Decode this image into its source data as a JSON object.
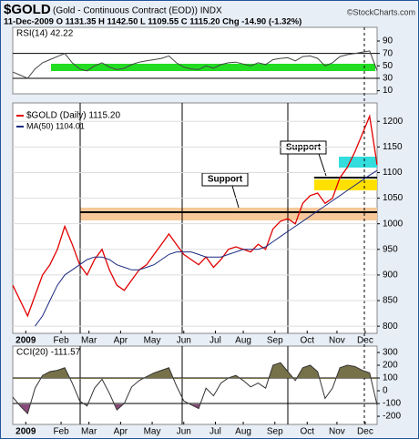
{
  "header": {
    "symbol": "$GOLD",
    "name": "(Gold - Continuous Contract (EOD)) INDX",
    "quote": "11-Dec-2009  O 1131.35  H 1142.50  L 1109.55  C 1115.20  Chg -14.90 (-1.32%)",
    "credit": "©StockCharts.com"
  },
  "chart_data": [
    {
      "type": "line",
      "label": "RSI(14) 42.22",
      "xlim": [
        0,
        49
      ],
      "ylim": [
        5,
        112
      ],
      "yticks": [
        10,
        30,
        50,
        70,
        90
      ],
      "hlines": [
        70,
        30
      ],
      "series": [
        {
          "name": "RSI(14)",
          "color": "#444444",
          "values": [
            40,
            35,
            30,
            45,
            55,
            60,
            65,
            70,
            55,
            45,
            42,
            50,
            55,
            48,
            44,
            46,
            52,
            56,
            58,
            60,
            62,
            66,
            55,
            48,
            45,
            44,
            50,
            46,
            52,
            55,
            56,
            53,
            50,
            55,
            52,
            60,
            62,
            63,
            58,
            65,
            66,
            62,
            50,
            55,
            65,
            68,
            70,
            72,
            74,
            42.22
          ]
        }
      ]
    },
    {
      "type": "line",
      "xlim": [
        0,
        49
      ],
      "ylim": [
        786,
        1236
      ],
      "yticks": [
        800,
        850,
        900,
        950,
        1000,
        1050,
        1100,
        1150,
        1200
      ],
      "grid": true,
      "annotations": [
        "Support",
        "Support"
      ],
      "xticks": [
        {
          "value": 1.75,
          "label": "2009"
        },
        {
          "value": 6.5,
          "label": "Feb"
        },
        {
          "value": 10.25,
          "label": "Mar"
        },
        {
          "value": 14.5,
          "label": "Apr"
        },
        {
          "value": 18.75,
          "label": "May"
        },
        {
          "value": 23,
          "label": "Jun"
        },
        {
          "value": 27.25,
          "label": "Jul"
        },
        {
          "value": 31,
          "label": "Aug"
        },
        {
          "value": 35.25,
          "label": "Sep"
        },
        {
          "value": 39.6,
          "label": "Oct"
        },
        {
          "value": 43.6,
          "label": "Nov"
        },
        {
          "value": 47.4,
          "label": "Dec"
        }
      ],
      "series": [
        {
          "name": "$GOLD (Daily) 1115.20",
          "color": "#e00000",
          "values": [
            880,
            850,
            820,
            860,
            900,
            920,
            950,
            995,
            960,
            920,
            900,
            930,
            950,
            910,
            880,
            870,
            890,
            910,
            920,
            940,
            960,
            980,
            960,
            940,
            930,
            920,
            935,
            915,
            930,
            950,
            955,
            950,
            945,
            960,
            950,
            990,
            1005,
            1010,
            1000,
            1040,
            1055,
            1060,
            1040,
            1050,
            1090,
            1110,
            1140,
            1175,
            1210,
            1115.2
          ]
        },
        {
          "name": "MA(50) 1104.01",
          "color": "#1a2a80",
          "values": [
            null,
            null,
            null,
            800,
            820,
            850,
            880,
            900,
            910,
            920,
            930,
            935,
            935,
            930,
            920,
            915,
            910,
            910,
            915,
            920,
            930,
            940,
            945,
            945,
            945,
            940,
            935,
            935,
            935,
            940,
            945,
            950,
            950,
            950,
            955,
            965,
            975,
            985,
            995,
            1005,
            1015,
            1025,
            1035,
            1045,
            1055,
            1065,
            1075,
            1085,
            1095,
            1104.01
          ]
        }
      ]
    },
    {
      "type": "line",
      "label": "CCI(20) -111.57",
      "xlim": [
        0,
        49
      ],
      "ylim": [
        -264,
        350
      ],
      "yticks": [
        -200,
        -100,
        0,
        100,
        200,
        300
      ],
      "hlines": [
        100,
        -100
      ],
      "xticks": [
        {
          "value": 1.75,
          "label": "2009"
        },
        {
          "value": 6.5,
          "label": "Feb"
        },
        {
          "value": 10.25,
          "label": "Mar"
        },
        {
          "value": 14.5,
          "label": "Apr"
        },
        {
          "value": 18.75,
          "label": "May"
        },
        {
          "value": 23,
          "label": "Jun"
        },
        {
          "value": 27.25,
          "label": "Jul"
        },
        {
          "value": 31,
          "label": "Aug"
        },
        {
          "value": 35.25,
          "label": "Sep"
        },
        {
          "value": 39.6,
          "label": "Oct"
        },
        {
          "value": 43.6,
          "label": "Nov"
        },
        {
          "value": 47.4,
          "label": "Dec"
        }
      ],
      "series": [
        {
          "name": "CCI(20)",
          "color": "#333333",
          "values": [
            -50,
            -120,
            -180,
            20,
            120,
            150,
            160,
            180,
            60,
            -80,
            -120,
            20,
            90,
            -20,
            -150,
            -100,
            30,
            80,
            110,
            140,
            160,
            180,
            40,
            -80,
            -110,
            -140,
            20,
            -40,
            60,
            100,
            120,
            80,
            30,
            60,
            20,
            200,
            220,
            150,
            80,
            180,
            200,
            150,
            -60,
            20,
            180,
            200,
            190,
            160,
            140,
            -111.57
          ]
        }
      ]
    }
  ]
}
